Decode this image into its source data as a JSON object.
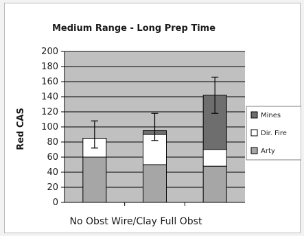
{
  "chart_data": {
    "type": "bar",
    "stacked": true,
    "title": "Medium Range - Long Prep Time",
    "xlabel": "",
    "ylabel": "Red CAS",
    "ylim": [
      0,
      200
    ],
    "yticks": [
      0,
      20,
      40,
      60,
      80,
      100,
      120,
      140,
      160,
      180,
      200
    ],
    "grid": true,
    "legend_position": "right",
    "categories": [
      "No Obst",
      "Wire/Clay",
      "Full Obst"
    ],
    "category_label_line": "No Obst Wire/Clay Full Obst",
    "series": [
      {
        "name": "Arty",
        "values": [
          60,
          50,
          48
        ],
        "color": "#a6a6a6"
      },
      {
        "name": "Dir. Fire",
        "values": [
          25,
          40,
          22
        ],
        "color": "#ffffff"
      },
      {
        "name": "Mines",
        "values": [
          0,
          5,
          72
        ],
        "color": "#6e6e6e"
      }
    ],
    "error_bars": {
      "low": [
        72,
        82,
        118
      ],
      "high": [
        108,
        118,
        166
      ]
    },
    "legend_order": [
      "Mines",
      "Dir. Fire",
      "Arty"
    ]
  },
  "colors": {
    "plot_bg": "#c0c0c0",
    "grid": "#000000",
    "frame_bg": "#ffffff"
  }
}
